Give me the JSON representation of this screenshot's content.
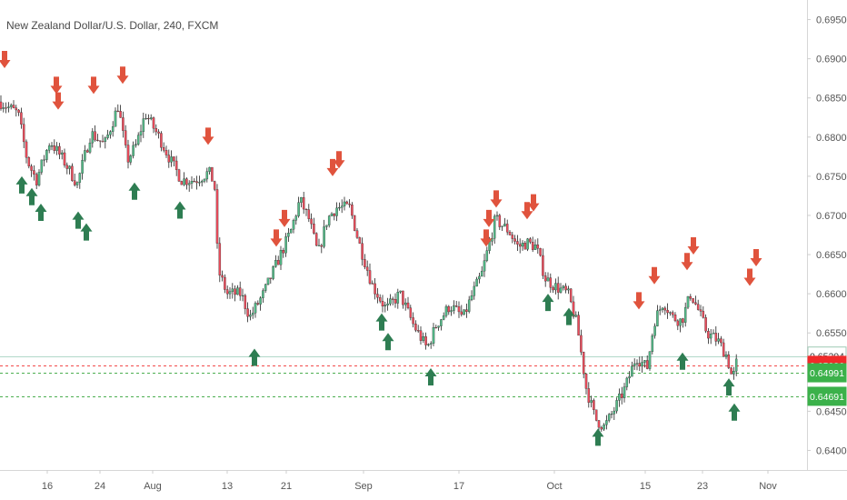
{
  "chart_data": {
    "type": "candlestick",
    "title": "New Zealand Dollar/U.S. Dollar, 240, FXCM",
    "ylim": [
      0.6375,
      0.6975
    ],
    "y_ticks": [
      0.64,
      0.645,
      0.65,
      0.655,
      0.66,
      0.665,
      0.67,
      0.675,
      0.68,
      0.685,
      0.69,
      0.695
    ],
    "y_tick_labels": [
      "0.64000",
      "0.64500",
      "0.65000",
      "0.65500",
      "0.66000",
      "0.66500",
      "0.67000",
      "0.67500",
      "0.68000",
      "0.68500",
      "0.69000",
      "0.69500"
    ],
    "x_tick_labels": [
      "16",
      "24",
      "Aug",
      "13",
      "21",
      "Sep",
      "17",
      "Oct",
      "15",
      "23",
      "Nov"
    ],
    "x_tick_index": [
      52,
      110,
      168,
      250,
      315,
      400,
      505,
      610,
      710,
      773,
      845
    ],
    "grid": false,
    "colors": {
      "up": "#53b987",
      "down": "#eb4d5c",
      "wick": "#222222",
      "buy_arrow": "#2e7d52",
      "sell_arrow": "#e0533d"
    },
    "price_path": [
      [
        0,
        0.6845
      ],
      [
        20,
        0.683
      ],
      [
        30,
        0.677
      ],
      [
        40,
        0.6745
      ],
      [
        55,
        0.6795
      ],
      [
        70,
        0.677
      ],
      [
        85,
        0.674
      ],
      [
        100,
        0.6805
      ],
      [
        115,
        0.679
      ],
      [
        130,
        0.684
      ],
      [
        140,
        0.677
      ],
      [
        150,
        0.679
      ],
      [
        160,
        0.683
      ],
      [
        175,
        0.68
      ],
      [
        190,
        0.6765
      ],
      [
        200,
        0.6745
      ],
      [
        215,
        0.6745
      ],
      [
        230,
        0.6755
      ],
      [
        236,
        0.674
      ],
      [
        240,
        0.663
      ],
      [
        250,
        0.66
      ],
      [
        265,
        0.66
      ],
      [
        275,
        0.657
      ],
      [
        290,
        0.66
      ],
      [
        305,
        0.664
      ],
      [
        320,
        0.668
      ],
      [
        330,
        0.672
      ],
      [
        340,
        0.6695
      ],
      [
        350,
        0.665
      ],
      [
        360,
        0.6695
      ],
      [
        370,
        0.671
      ],
      [
        385,
        0.671
      ],
      [
        395,
        0.6665
      ],
      [
        410,
        0.661
      ],
      [
        425,
        0.658
      ],
      [
        440,
        0.66
      ],
      [
        455,
        0.656
      ],
      [
        470,
        0.653
      ],
      [
        480,
        0.656
      ],
      [
        495,
        0.6585
      ],
      [
        510,
        0.657
      ],
      [
        520,
        0.66
      ],
      [
        530,
        0.6625
      ],
      [
        545,
        0.6695
      ],
      [
        560,
        0.668
      ],
      [
        570,
        0.666
      ],
      [
        580,
        0.6665
      ],
      [
        590,
        0.666
      ],
      [
        600,
        0.662
      ],
      [
        610,
        0.661
      ],
      [
        625,
        0.66
      ],
      [
        635,
        0.656
      ],
      [
        645,
        0.648
      ],
      [
        655,
        0.644
      ],
      [
        665,
        0.643
      ],
      [
        675,
        0.645
      ],
      [
        688,
        0.648
      ],
      [
        700,
        0.652
      ],
      [
        712,
        0.6505
      ],
      [
        720,
        0.6565
      ],
      [
        730,
        0.659
      ],
      [
        740,
        0.657
      ],
      [
        750,
        0.6565
      ],
      [
        760,
        0.66
      ],
      [
        768,
        0.658
      ],
      [
        778,
        0.655
      ],
      [
        790,
        0.654
      ],
      [
        800,
        0.652
      ],
      [
        806,
        0.649
      ],
      [
        812,
        0.652
      ]
    ],
    "buy_signals": [
      [
        24,
        0.675
      ],
      [
        35,
        0.6735
      ],
      [
        45,
        0.6715
      ],
      [
        86,
        0.6705
      ],
      [
        95,
        0.669
      ],
      [
        148,
        0.6742
      ],
      [
        198,
        0.6718
      ],
      [
        280,
        0.653
      ],
      [
        420,
        0.6575
      ],
      [
        427,
        0.655
      ],
      [
        474,
        0.6505
      ],
      [
        603,
        0.66
      ],
      [
        626,
        0.6582
      ],
      [
        658,
        0.6428
      ],
      [
        751,
        0.6525
      ],
      [
        802,
        0.6492
      ],
      [
        808,
        0.646
      ]
    ],
    "sell_signals": [
      [
        5,
        0.6888
      ],
      [
        62,
        0.6855
      ],
      [
        64,
        0.6835
      ],
      [
        103,
        0.6855
      ],
      [
        135,
        0.6868
      ],
      [
        229,
        0.679
      ],
      [
        304,
        0.666
      ],
      [
        313,
        0.6685
      ],
      [
        366,
        0.675
      ],
      [
        373,
        0.676
      ],
      [
        535,
        0.666
      ],
      [
        538,
        0.6685
      ],
      [
        546,
        0.671
      ],
      [
        580,
        0.6695
      ],
      [
        587,
        0.6705
      ],
      [
        720,
        0.6612
      ],
      [
        703,
        0.658
      ],
      [
        756,
        0.663
      ],
      [
        763,
        0.665
      ],
      [
        825,
        0.661
      ],
      [
        832,
        0.6635
      ]
    ],
    "price_tags": [
      {
        "label": "0.65204",
        "value": 0.65204,
        "bg": "#ffffff",
        "fg": "#333333",
        "border": "#9fc9b5"
      },
      {
        "label": "0.65086",
        "value": 0.65086,
        "bg": "#f02a2a",
        "fg": "#ffffff",
        "border": "#f02a2a"
      },
      {
        "label": "0.64991",
        "value": 0.64991,
        "bg": "#3bb14a",
        "fg": "#ffffff",
        "border": "#3bb14a"
      },
      {
        "label": "0.64691",
        "value": 0.64691,
        "bg": "#3bb14a",
        "fg": "#ffffff",
        "border": "#3bb14a"
      }
    ],
    "horizontal_lines": [
      {
        "value": 0.65204,
        "color": "#b2d8c9",
        "style": "solid"
      },
      {
        "value": 0.65086,
        "color": "#f24a4a",
        "style": "dashed"
      },
      {
        "value": 0.64991,
        "color": "#4caf50",
        "style": "dashed"
      },
      {
        "value": 0.64691,
        "color": "#4caf50",
        "style": "dashed"
      }
    ]
  }
}
